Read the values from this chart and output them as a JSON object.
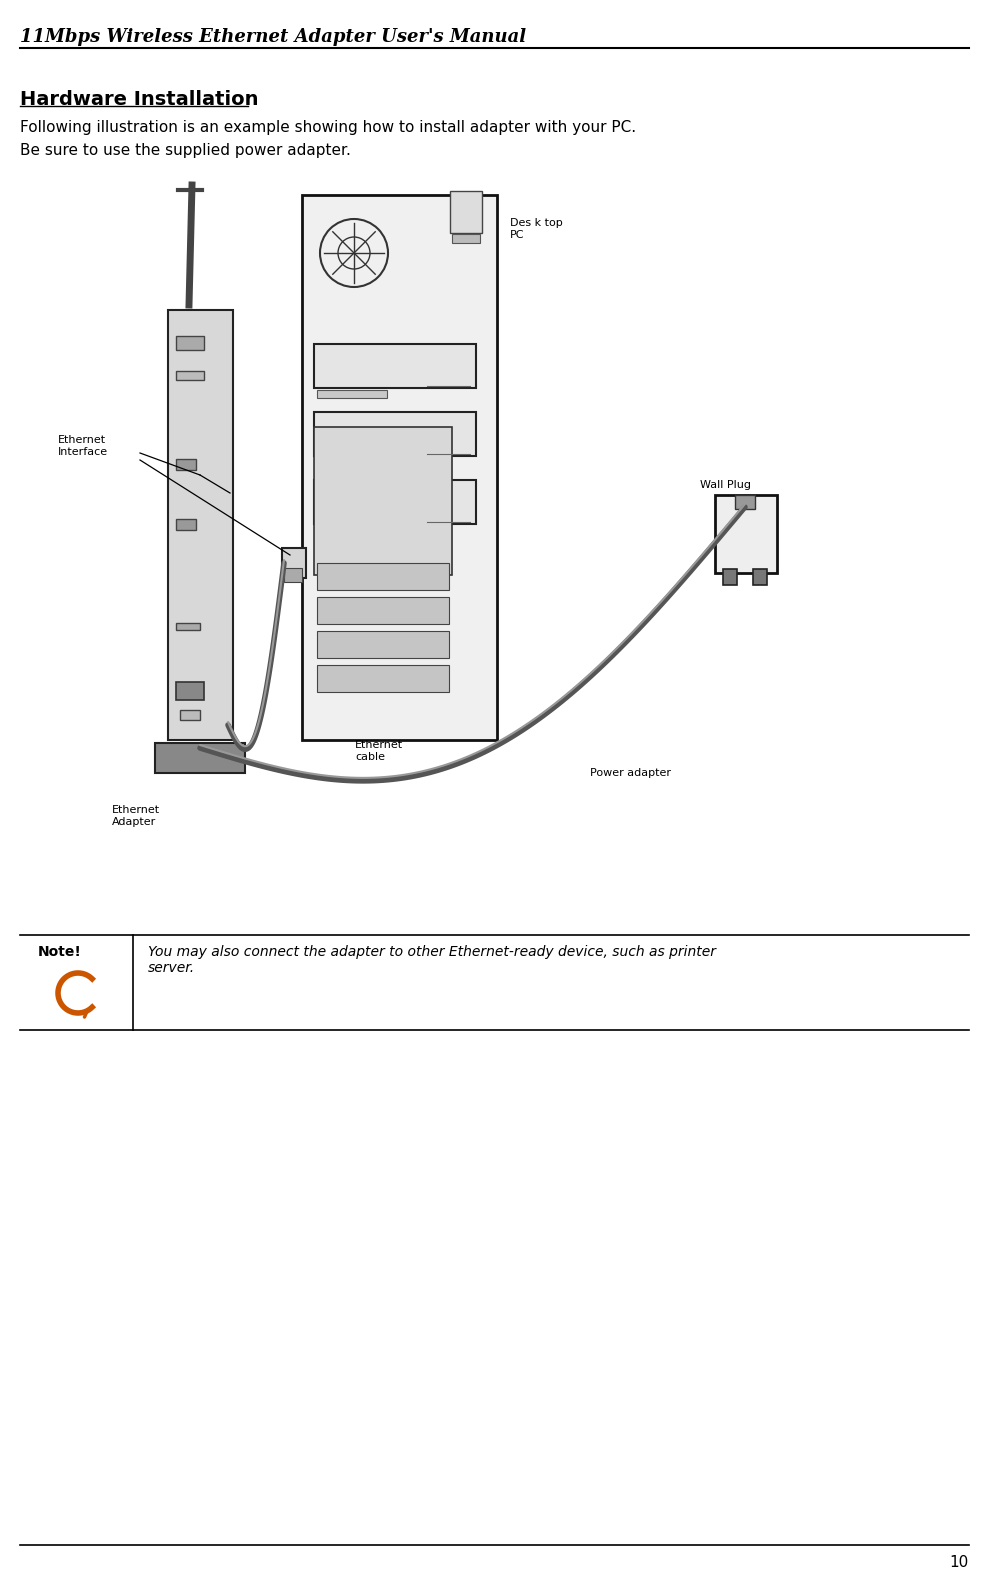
{
  "header_text": "11Mbps Wireless Ethernet Adapter User's Manual",
  "page_number": "10",
  "section_title": "Hardware Installation",
  "para1": "Following illustration is an example showing how to install adapter with your PC.",
  "para2": "Be sure to use the supplied power adapter.",
  "note_label": "Note!",
  "note_text": "You may also connect the adapter to other Ethernet-ready device, such as printer\nserver.",
  "bg_color": "#ffffff",
  "text_color": "#000000",
  "header_font_size": 13,
  "title_font_size": 14,
  "body_font_size": 11,
  "note_font_size": 10,
  "page_num_font_size": 11
}
